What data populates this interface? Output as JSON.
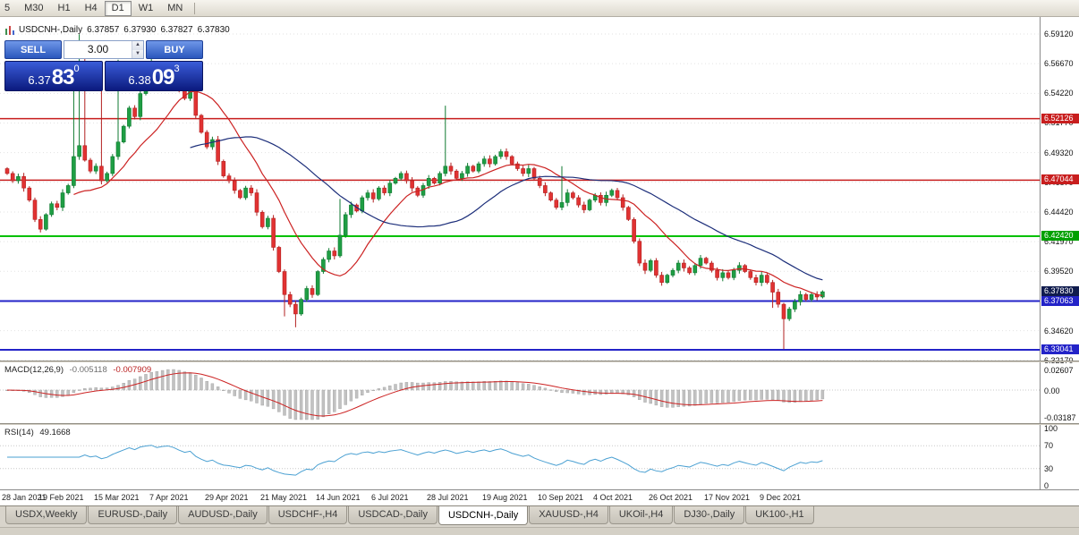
{
  "toolbar": {
    "timeframes": [
      {
        "label": "5",
        "active": false
      },
      {
        "label": "M30",
        "active": false
      },
      {
        "label": "H1",
        "active": false
      },
      {
        "label": "H4",
        "active": false
      },
      {
        "label": "D1",
        "active": true
      },
      {
        "label": "W1",
        "active": false
      },
      {
        "label": "MN",
        "active": false
      }
    ]
  },
  "chart_header": {
    "symbol": "USDCNH-,Daily",
    "open": "6.37857",
    "high": "6.37930",
    "low": "6.37827",
    "close": "6.37830"
  },
  "trade_panel": {
    "sell_label": "SELL",
    "buy_label": "BUY",
    "volume": "3.00",
    "sell_price": {
      "prefix": "6.37",
      "big": "83",
      "sup": "0"
    },
    "buy_price": {
      "prefix": "6.38",
      "big": "09",
      "sup": "3"
    }
  },
  "price_axis": {
    "ticks": [
      "6.59120",
      "6.56670",
      "6.54220",
      "6.51770",
      "6.49320",
      "6.46870",
      "6.44420",
      "6.41970",
      "6.39520",
      "6.37070",
      "6.34620",
      "6.32170"
    ],
    "badges": [
      {
        "label": "6.52126",
        "value": 6.52126,
        "color": "#c81e1e"
      },
      {
        "label": "6.47044",
        "value": 6.47044,
        "color": "#c81e1e"
      },
      {
        "label": "6.42420",
        "value": 6.4242,
        "color": "#00a000"
      },
      {
        "label": "6.37830",
        "value": 6.3783,
        "color": "#101c4e"
      },
      {
        "label": "6.37063",
        "value": 6.37063,
        "color": "#2323c8"
      },
      {
        "label": "6.33041",
        "value": 6.33041,
        "color": "#2323c8"
      }
    ]
  },
  "macd_pane": {
    "title": "MACD(12,26,9)",
    "value": "-0.005118",
    "signal": "-0.007909"
  },
  "rsi_pane": {
    "title": "RSI(14)",
    "value": "49.1668"
  },
  "tab_bar": {
    "tabs": [
      "USDX,Weekly",
      "EURUSD-,Daily",
      "AUDUSD-,Daily",
      "USDCHF-,H4",
      "USDCAD-,Daily",
      "USDCNH-,Daily",
      "XAUUSD-,H4",
      "UKOil-,H4",
      "DJ30-,Daily",
      "UK100-,H1"
    ],
    "active_index": 5
  },
  "chart_data": {
    "type": "candlestick",
    "symbol": "USDCNH-",
    "timeframe": "Daily",
    "title": "USDCNH-,Daily",
    "price_axis_range": {
      "top": 6.5912,
      "bottom": 6.3252
    },
    "first_open": 6.48,
    "closes": [
      6.476,
      6.47,
      6.4735,
      6.464,
      6.454,
      6.438,
      6.43,
      6.442,
      6.451,
      6.448,
      6.46,
      6.466,
      6.49,
      6.499,
      6.487,
      6.478,
      6.482,
      6.47,
      6.476,
      6.49,
      6.502,
      6.515,
      6.53,
      6.523,
      6.542,
      6.55,
      6.556,
      6.548,
      6.556,
      6.56,
      6.555,
      6.546,
      6.538,
      6.544,
      6.524,
      6.51,
      6.498,
      6.504,
      6.486,
      6.474,
      6.47,
      6.462,
      6.456,
      6.464,
      6.46,
      6.444,
      6.432,
      6.439,
      6.415,
      6.395,
      6.376,
      6.368,
      6.36,
      6.372,
      6.381,
      6.376,
      6.395,
      6.405,
      6.412,
      6.408,
      6.425,
      6.442,
      6.45,
      6.445,
      6.456,
      6.46,
      6.455,
      6.464,
      6.46,
      6.468,
      6.472,
      6.476,
      6.47,
      6.464,
      6.458,
      6.466,
      6.472,
      6.468,
      6.476,
      6.482,
      6.478,
      6.472,
      6.476,
      6.482,
      6.478,
      6.484,
      6.488,
      6.484,
      6.49,
      6.494,
      6.49,
      6.484,
      6.48,
      6.476,
      6.48,
      6.472,
      6.466,
      6.46,
      6.454,
      6.448,
      6.452,
      6.46,
      6.456,
      6.45,
      6.446,
      6.454,
      6.458,
      6.452,
      6.458,
      6.462,
      6.456,
      6.448,
      6.438,
      6.42,
      6.402,
      6.396,
      6.404,
      6.392,
      6.386,
      6.392,
      6.396,
      6.402,
      6.398,
      6.394,
      6.4,
      6.406,
      6.402,
      6.396,
      6.39,
      6.394,
      6.39,
      6.396,
      6.4,
      6.395,
      6.39,
      6.386,
      6.392,
      6.386,
      6.378,
      6.368,
      6.356,
      6.364,
      6.37,
      6.376,
      6.372,
      6.376,
      6.374,
      6.3783
    ],
    "spikes": [
      {
        "i": 12,
        "h": 6.552
      },
      {
        "i": 13,
        "h": 6.591
      },
      {
        "i": 14,
        "h": 6.575
      },
      {
        "i": 17,
        "h": 6.545
      },
      {
        "i": 20,
        "h": 6.57
      },
      {
        "i": 26,
        "h": 6.576
      },
      {
        "i": 50,
        "l": 6.358
      },
      {
        "i": 52,
        "l": 6.349
      },
      {
        "i": 60,
        "h": 6.455
      },
      {
        "i": 79,
        "h": 6.532
      },
      {
        "i": 100,
        "h": 6.482
      },
      {
        "i": 138,
        "l": 6.365
      },
      {
        "i": 140,
        "l": 6.331
      }
    ],
    "x_labels": [
      {
        "i": 0,
        "label": "28 Jan 2021"
      },
      {
        "i": 10,
        "label": "19 Feb 2021"
      },
      {
        "i": 20,
        "label": "15 Mar 2021"
      },
      {
        "i": 30,
        "label": "7 Apr 2021"
      },
      {
        "i": 40,
        "label": "29 Apr 2021"
      },
      {
        "i": 50,
        "label": "21 May 2021"
      },
      {
        "i": 60,
        "label": "14 Jun 2021"
      },
      {
        "i": 70,
        "label": "6 Jul 2021"
      },
      {
        "i": 80,
        "label": "28 Jul 2021"
      },
      {
        "i": 90,
        "label": "19 Aug 2021"
      },
      {
        "i": 100,
        "label": "10 Sep 2021"
      },
      {
        "i": 110,
        "label": "4 Oct 2021"
      },
      {
        "i": 120,
        "label": "26 Oct 2021"
      },
      {
        "i": 130,
        "label": "17 Nov 2021"
      },
      {
        "i": 140,
        "label": "9 Dec 2021"
      }
    ],
    "levels": [
      {
        "value": 6.52126,
        "color": "#c81e1e",
        "width": 1.5
      },
      {
        "value": 6.47044,
        "color": "#c81e1e",
        "width": 1.5
      },
      {
        "value": 6.4242,
        "color": "#00c000",
        "width": 2
      },
      {
        "value": 6.37063,
        "color": "#2323c8",
        "width": 2
      },
      {
        "value": 6.33041,
        "color": "#2323c8",
        "width": 2
      }
    ],
    "current_price": 6.3783,
    "candle_colors": {
      "up": "#1f9e44",
      "down": "#e13232",
      "up_border": "#0f7a30",
      "down_border": "#b22020"
    },
    "moving_averages": [
      {
        "name": "fast-ma",
        "period": 13,
        "method": "sma",
        "color": "#cc2222"
      },
      {
        "name": "slow-ma",
        "period": 34,
        "method": "sma",
        "color": "#1c2e7a"
      }
    ],
    "indicators": {
      "macd": {
        "fast": 12,
        "slow": 26,
        "signal": 9,
        "current_macd": -0.005118,
        "current_signal": -0.007909,
        "axis_labels": [
          "0.02607",
          "0.00",
          "-0.03187"
        ],
        "histogram_color": "#c2c2c2",
        "signal_color": "#cc2222"
      },
      "rsi": {
        "period": 14,
        "current": 49.1668,
        "axis_labels": [
          "100",
          "70",
          "30",
          "0"
        ],
        "levels": [
          70,
          30
        ],
        "line_color": "#4aa0d2"
      }
    }
  }
}
